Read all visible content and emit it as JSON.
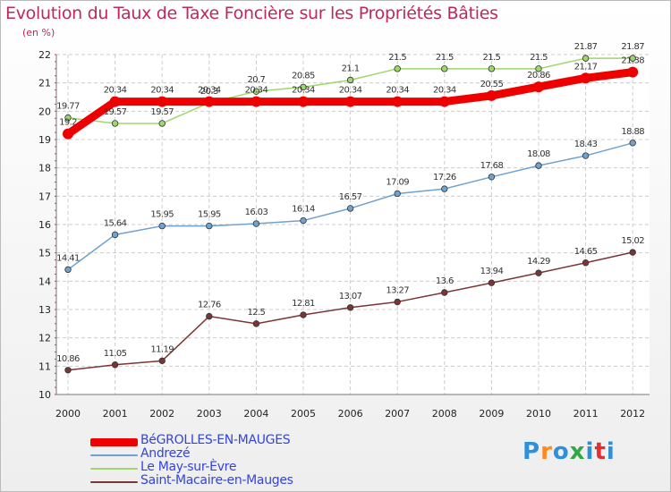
{
  "title": "Evolution du Taux de Taxe Foncière sur les Propriétés Bâties",
  "unit_label": "(en %)",
  "logo": {
    "text": "Proxiti",
    "letter_colors": [
      "#2f8fd8",
      "#ff8c1a",
      "#2f8fd8",
      "#2fa845",
      "#2f8fd8",
      "#e03030",
      "#2f8fd8"
    ]
  },
  "chart_data": {
    "type": "line",
    "title": "Evolution du Taux de Taxe Foncière sur les Propriétés Bâties",
    "ylabel": "(en %)",
    "xlabel": "",
    "ylim": [
      10,
      22
    ],
    "yticks": [
      10,
      11,
      12,
      13,
      14,
      15,
      16,
      17,
      18,
      19,
      20,
      21,
      22
    ],
    "categories": [
      "2000",
      "2001",
      "2002",
      "2003",
      "2004",
      "2005",
      "2006",
      "2007",
      "2008",
      "2009",
      "2010",
      "2011",
      "2012"
    ],
    "grid": "x-and-y dashed",
    "series": [
      {
        "name": "BéGROLLES-EN-MAUGES",
        "color": "#ee0000",
        "emphasis": true,
        "values": [
          19.2,
          20.34,
          20.34,
          20.34,
          20.34,
          20.34,
          20.34,
          20.34,
          20.34,
          20.55,
          20.86,
          21.17,
          21.38
        ],
        "labels": [
          "19.2",
          "20.34",
          "20.34",
          "20.34",
          "20.34",
          "20.34",
          "20.34",
          "20.34",
          "20.34",
          "20.55",
          "20.86",
          "21.17",
          "21.38"
        ]
      },
      {
        "name": "Andrezé",
        "color": "#6fa2cf",
        "values": [
          14.41,
          15.64,
          15.95,
          15.95,
          16.03,
          16.14,
          16.57,
          17.09,
          17.26,
          17.68,
          18.08,
          18.43,
          18.88
        ],
        "labels": [
          "14.41",
          "15.64",
          "15.95",
          "15.95",
          "16.03",
          "16.14",
          "16.57",
          "17.09",
          "17.26",
          "17.68",
          "18.08",
          "18.43",
          "18.88"
        ]
      },
      {
        "name": "Le May-sur-Èvre",
        "color": "#9ed86a",
        "values": [
          19.77,
          19.57,
          19.57,
          20.3,
          20.7,
          20.85,
          21.1,
          21.5,
          21.5,
          21.5,
          21.5,
          21.87,
          21.87
        ],
        "labels": [
          "19.77",
          "19.57",
          "19.57",
          "20.3",
          "20.7",
          "20.85",
          "21.1",
          "21.5",
          "21.5",
          "21.5",
          "21.5",
          "21.87",
          "21.87"
        ]
      },
      {
        "name": "Saint-Macaire-en-Mauges",
        "color": "#7a3535",
        "values": [
          10.86,
          11.05,
          11.19,
          12.76,
          12.5,
          12.81,
          13.07,
          13.27,
          13.6,
          13.94,
          14.29,
          14.65,
          15.02
        ],
        "labels": [
          "10.86",
          "11.05",
          "11.19",
          "12.76",
          "12.5",
          "12.81",
          "13.07",
          "13.27",
          "13.6",
          "13.94",
          "14.29",
          "14.65",
          "15.02"
        ]
      }
    ]
  }
}
